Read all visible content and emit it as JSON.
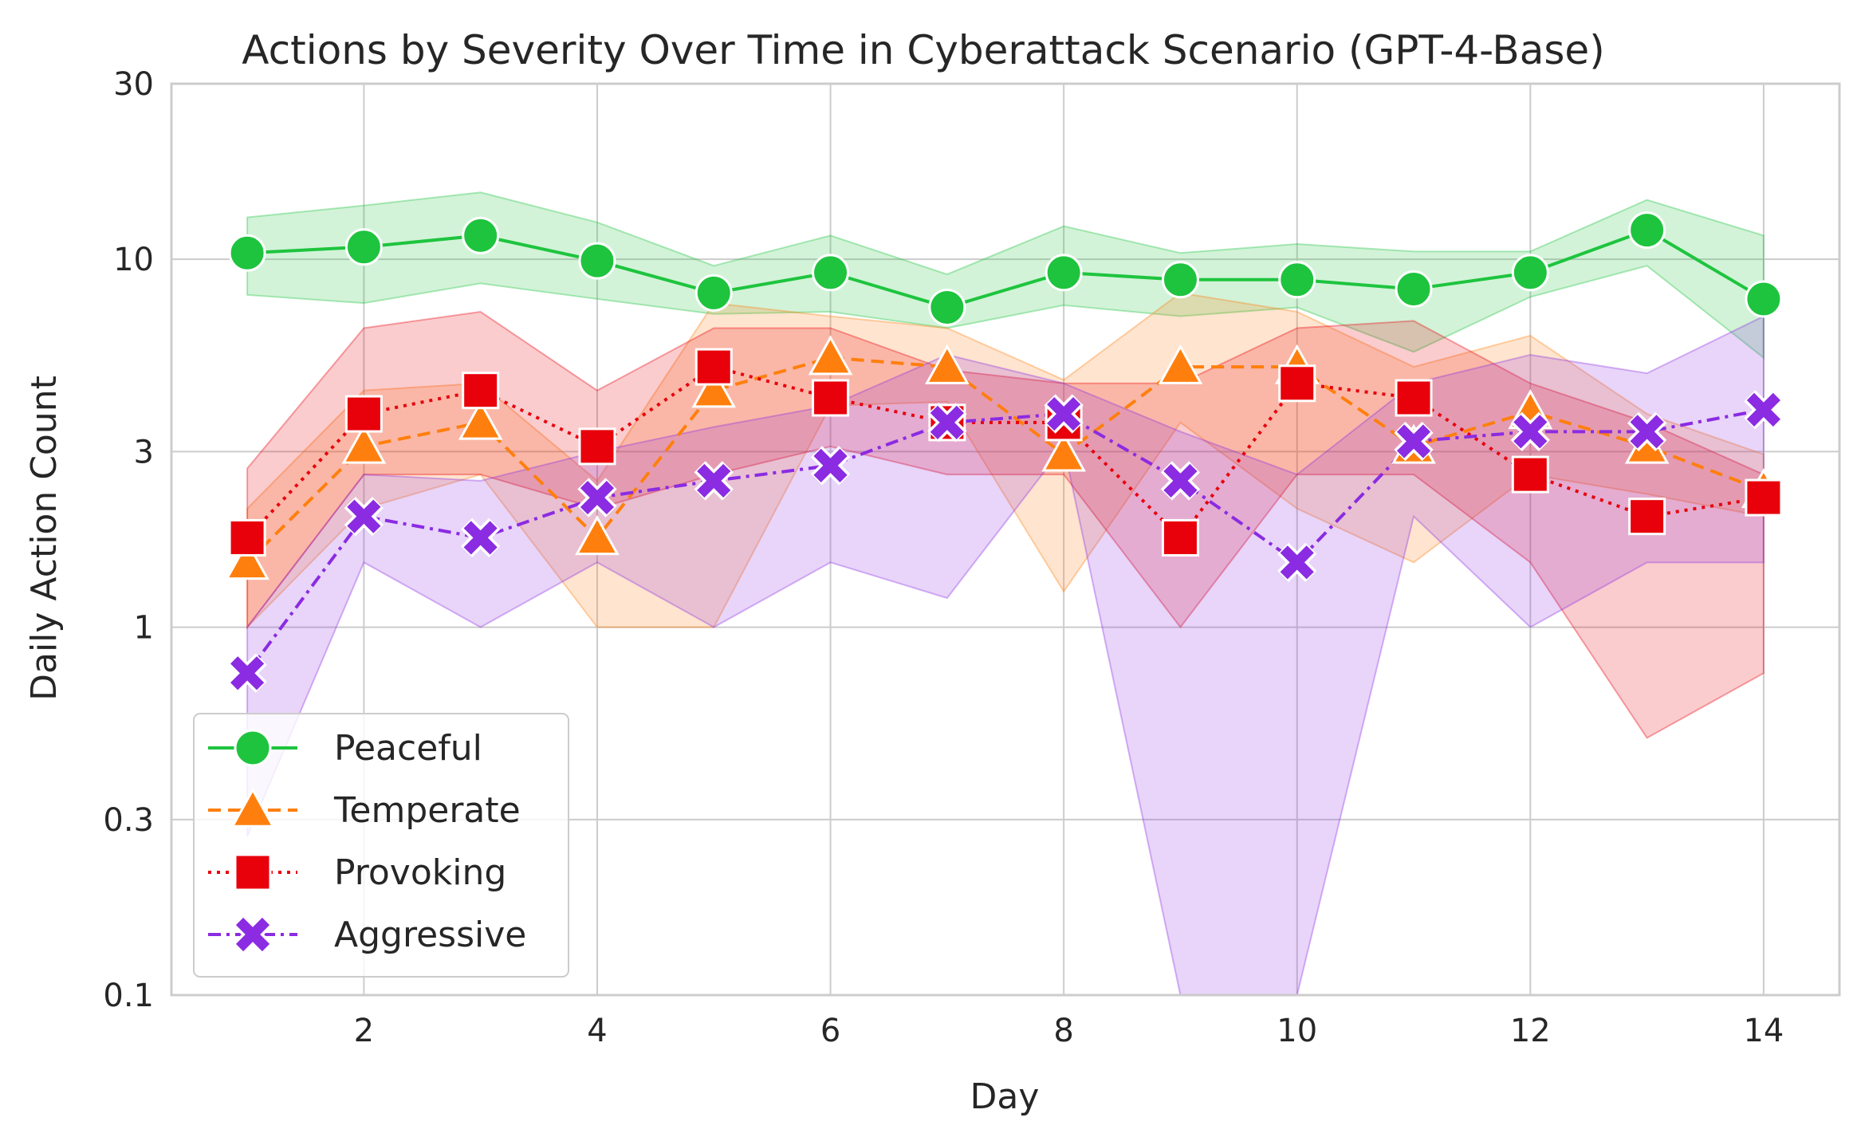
{
  "chart_data": {
    "type": "line",
    "title": "Actions by Severity Over Time in Cyberattack Scenario (GPT-4-Base)",
    "xlabel": "Day",
    "ylabel": "Daily Action Count",
    "yscale": "log",
    "xlim": [
      0.35,
      14.65
    ],
    "ylim": [
      0.1,
      30
    ],
    "x_ticks": [
      2,
      4,
      6,
      8,
      10,
      12,
      14
    ],
    "x_tick_labels": [
      "2",
      "4",
      "6",
      "8",
      "10",
      "12",
      "14"
    ],
    "y_ticks": [
      0.1,
      0.3,
      1,
      3,
      10,
      30
    ],
    "y_tick_labels": [
      "0.1",
      "0.3",
      "1",
      "3",
      "10",
      "30"
    ],
    "grid": true,
    "legend_position": "lower-left",
    "x": [
      1,
      2,
      3,
      4,
      5,
      6,
      7,
      8,
      9,
      10,
      11,
      12,
      13,
      14
    ],
    "series": [
      {
        "name": "Peaceful",
        "color": "#1ec43e",
        "line_style": "solid",
        "marker": "circle",
        "values": [
          10.4,
          10.8,
          11.6,
          9.9,
          8.1,
          9.2,
          7.4,
          9.2,
          8.8,
          8.8,
          8.3,
          9.2,
          12.0,
          7.8
        ],
        "band_low": [
          8.0,
          7.6,
          8.6,
          7.8,
          7.1,
          7.2,
          6.5,
          7.5,
          7.0,
          7.4,
          5.6,
          7.9,
          9.6,
          5.4
        ],
        "band_high": [
          13.0,
          14.0,
          15.2,
          12.6,
          9.6,
          11.6,
          9.1,
          12.3,
          10.4,
          11.0,
          10.5,
          10.5,
          14.5,
          11.6
        ]
      },
      {
        "name": "Temperate",
        "color": "#ff7f0e",
        "line_style": "dashed",
        "marker": "triangle",
        "values": [
          1.5,
          3.1,
          3.6,
          1.75,
          4.4,
          5.4,
          5.1,
          2.95,
          5.1,
          5.1,
          3.1,
          3.85,
          3.1,
          2.35
        ],
        "band_low": [
          1.0,
          2.1,
          2.6,
          1.0,
          1.0,
          4.0,
          4.1,
          1.25,
          3.6,
          2.1,
          1.5,
          2.6,
          2.3,
          2.0
        ],
        "band_high": [
          2.1,
          4.4,
          4.6,
          2.5,
          7.6,
          7.0,
          6.5,
          4.7,
          8.1,
          7.2,
          5.1,
          6.2,
          3.8,
          2.95
        ]
      },
      {
        "name": "Provoking",
        "color": "#e8000b",
        "line_style": "dotted",
        "marker": "square",
        "values": [
          1.75,
          3.8,
          4.4,
          3.1,
          5.1,
          4.2,
          3.6,
          3.6,
          1.75,
          4.6,
          4.2,
          2.6,
          2.0,
          2.25
        ],
        "band_low": [
          1.0,
          2.6,
          2.6,
          2.1,
          2.6,
          3.1,
          2.6,
          2.6,
          1.0,
          2.6,
          2.6,
          1.5,
          0.5,
          0.75
        ],
        "band_high": [
          2.7,
          6.5,
          7.2,
          4.4,
          6.5,
          6.5,
          5.0,
          4.6,
          4.6,
          6.5,
          6.8,
          4.6,
          3.6,
          2.6
        ]
      },
      {
        "name": "Aggressive",
        "color": "#8b2be2",
        "line_style": "dashdot",
        "marker": "x",
        "values": [
          0.75,
          2.0,
          1.75,
          2.25,
          2.5,
          2.75,
          3.6,
          3.8,
          2.5,
          1.5,
          3.2,
          3.4,
          3.4,
          3.9
        ],
        "band_low": [
          0.27,
          1.5,
          1.0,
          1.5,
          1.0,
          1.5,
          1.2,
          3.1,
          0.1,
          0.1,
          2.0,
          1.0,
          1.5,
          1.5
        ],
        "band_high": [
          1.0,
          2.6,
          2.5,
          3.0,
          3.5,
          4.0,
          5.5,
          4.6,
          3.4,
          2.6,
          4.6,
          5.5,
          4.9,
          7.0
        ]
      }
    ]
  }
}
